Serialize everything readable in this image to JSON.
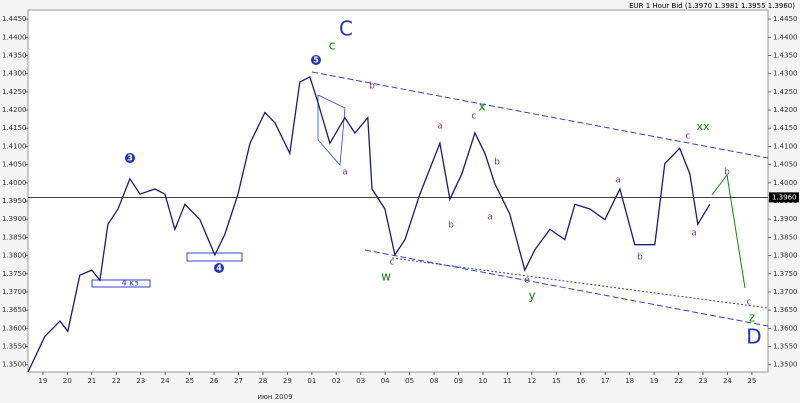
{
  "chart_data": {
    "type": "line",
    "title": "EUR 1 Hour Bid (1.3970 1.3981 1.3955 1.3960)",
    "x_axis_label": "июн 2009",
    "xlim": [
      -0.61,
      29.66
    ],
    "xticks": [
      {
        "value": 0,
        "label": "19"
      },
      {
        "value": 1,
        "label": "20"
      },
      {
        "value": 2,
        "label": "21"
      },
      {
        "value": 3,
        "label": "22"
      },
      {
        "value": 4,
        "label": "23"
      },
      {
        "value": 5,
        "label": "24"
      },
      {
        "value": 6,
        "label": "25"
      },
      {
        "value": 7,
        "label": "26"
      },
      {
        "value": 8,
        "label": "27"
      },
      {
        "value": 9,
        "label": "28"
      },
      {
        "value": 10,
        "label": "29"
      },
      {
        "value": 11,
        "label": "01"
      },
      {
        "value": 12,
        "label": "02"
      },
      {
        "value": 13,
        "label": "03"
      },
      {
        "value": 14,
        "label": "04"
      },
      {
        "value": 15,
        "label": "05"
      },
      {
        "value": 16,
        "label": "08"
      },
      {
        "value": 17,
        "label": "09"
      },
      {
        "value": 18,
        "label": "10"
      },
      {
        "value": 19,
        "label": "11"
      },
      {
        "value": 20,
        "label": "12"
      },
      {
        "value": 21,
        "label": "15"
      },
      {
        "value": 22,
        "label": "16"
      },
      {
        "value": 23,
        "label": "17"
      },
      {
        "value": 24,
        "label": "18"
      },
      {
        "value": 25,
        "label": "19"
      },
      {
        "value": 26,
        "label": "22"
      },
      {
        "value": 27,
        "label": "23"
      },
      {
        "value": 28,
        "label": "24"
      },
      {
        "value": 29,
        "label": "25"
      }
    ],
    "ylim": [
      1.348,
      1.4475
    ],
    "yticks": [
      {
        "value": 1.35,
        "label": "1.3500"
      },
      {
        "value": 1.355,
        "label": "1.3550"
      },
      {
        "value": 1.36,
        "label": "1.3600"
      },
      {
        "value": 1.365,
        "label": "1.3650"
      },
      {
        "value": 1.37,
        "label": "1.3700"
      },
      {
        "value": 1.375,
        "label": "1.3750"
      },
      {
        "value": 1.38,
        "label": "1.3800"
      },
      {
        "value": 1.385,
        "label": "1.3850"
      },
      {
        "value": 1.39,
        "label": "1.3900"
      },
      {
        "value": 1.395,
        "label": "1.3950"
      },
      {
        "value": 1.4,
        "label": "1.4000"
      },
      {
        "value": 1.405,
        "label": "1.4050"
      },
      {
        "value": 1.41,
        "label": "1.4100"
      },
      {
        "value": 1.415,
        "label": "1.4150"
      },
      {
        "value": 1.42,
        "label": "1.4200"
      },
      {
        "value": 1.425,
        "label": "1.4250"
      },
      {
        "value": 1.43,
        "label": "1.4300"
      },
      {
        "value": 1.435,
        "label": "1.4350"
      },
      {
        "value": 1.44,
        "label": "1.4400"
      },
      {
        "value": 1.445,
        "label": "1.4450"
      }
    ],
    "current_price": {
      "value": 1.396,
      "label": "1.3960"
    },
    "series": [
      {
        "name": "EUR",
        "color": "#1a1a80",
        "x": [
          -0.61,
          0.08,
          0.7,
          1.02,
          1.51,
          2.0,
          2.33,
          2.66,
          3.07,
          3.56,
          3.97,
          4.58,
          4.99,
          5.4,
          5.81,
          6.42,
          7.03,
          7.44,
          7.98,
          8.47,
          9.08,
          9.49,
          10.1,
          10.51,
          10.92,
          11.25,
          11.74,
          12.35,
          12.76,
          13.29,
          13.46,
          13.99,
          14.4,
          14.81,
          15.42,
          16.24,
          16.65,
          17.14,
          17.67,
          18.08,
          18.49,
          19.1,
          19.71,
          20.12,
          20.74,
          21.35,
          21.76,
          22.37,
          22.99,
          23.6,
          24.21,
          25.03,
          25.44,
          26.05,
          26.46,
          26.79,
          27.28
        ],
        "values": [
          1.348,
          1.3578,
          1.362,
          1.3592,
          1.3746,
          1.376,
          1.3732,
          1.3886,
          1.3928,
          1.4011,
          1.3969,
          1.3983,
          1.3969,
          1.3872,
          1.3941,
          1.3899,
          1.3802,
          1.3858,
          1.3969,
          1.4109,
          1.4193,
          1.4165,
          1.4081,
          1.4277,
          1.4291,
          1.4221,
          1.4109,
          1.4179,
          1.4137,
          1.4179,
          1.3983,
          1.3928,
          1.3802,
          1.3844,
          1.3969,
          1.4109,
          1.3955,
          1.4025,
          1.4137,
          1.4081,
          1.3997,
          1.3914,
          1.376,
          1.3816,
          1.3872,
          1.3844,
          1.3941,
          1.3928,
          1.3899,
          1.3983,
          1.383,
          1.383,
          1.4053,
          1.4095,
          1.4025,
          1.3886,
          1.3941
        ]
      }
    ],
    "annotations": [
      "C",
      "c",
      "5",
      "3",
      "4",
      "4 кз",
      "b",
      "a",
      "x",
      "c",
      "a",
      "b",
      "b",
      "a",
      "c",
      "w",
      "e",
      "y",
      "a",
      "b",
      "c",
      "xx",
      "b",
      "a",
      "c",
      "z",
      "D"
    ]
  }
}
